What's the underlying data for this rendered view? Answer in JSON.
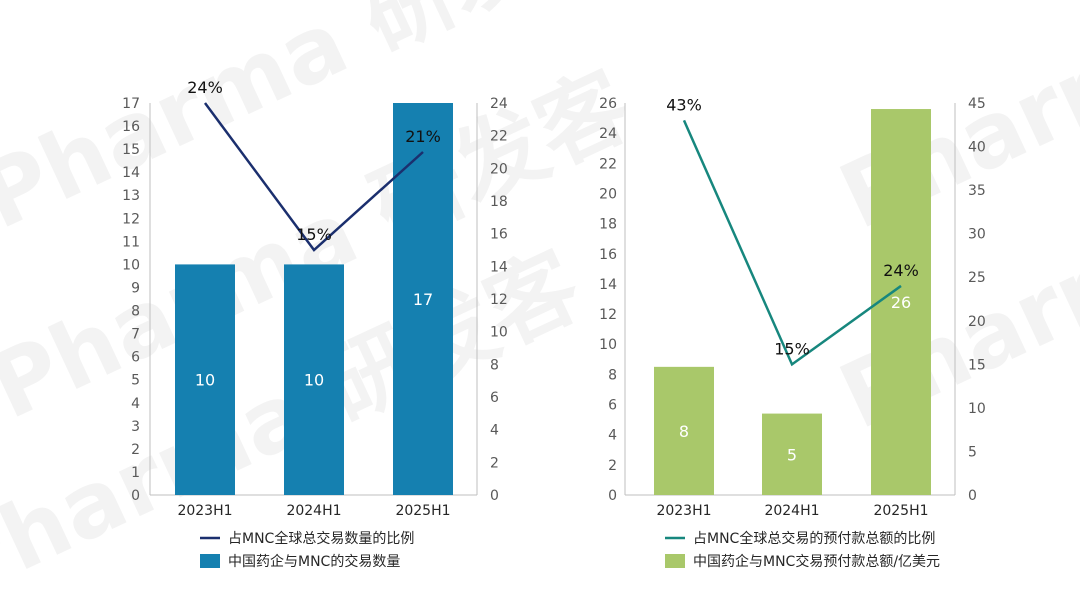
{
  "watermark": "Pharma 研发客",
  "chart_data": [
    {
      "type": "bar+line",
      "categories": [
        "2023H1",
        "2024H1",
        "2025H1"
      ],
      "bar_series": {
        "name": "中国药企与MNC的交易数量",
        "values": [
          10,
          10,
          17
        ],
        "labels": [
          "10",
          "10",
          "17"
        ],
        "color": "#1580b0"
      },
      "line_series": {
        "name": "占MNC全球总交易数量的比例",
        "values": [
          24,
          15,
          21
        ],
        "labels": [
          "24%",
          "15%",
          "21%"
        ],
        "color": "#1b2f6e"
      },
      "y_left": {
        "range": [
          0,
          17
        ],
        "step": 1
      },
      "y_right": {
        "range": [
          0,
          24
        ],
        "step": 2
      },
      "grid": false,
      "legend": "bottom"
    },
    {
      "type": "bar+line",
      "categories": [
        "2023H1",
        "2024H1",
        "2025H1"
      ],
      "bar_series": {
        "name": "中国药企与MNC交易预付款总额/亿美元",
        "values": [
          8.5,
          5.4,
          25.6
        ],
        "labels": [
          "8",
          "5",
          "26"
        ],
        "color": "#a9c86a"
      },
      "line_series": {
        "name": "占MNC全球总交易的预付款总额的比例",
        "values": [
          43,
          15,
          24
        ],
        "labels": [
          "43%",
          "15%",
          "24%"
        ],
        "color": "#17877e"
      },
      "y_left": {
        "range": [
          0,
          26
        ],
        "step": 2
      },
      "y_right": {
        "range": [
          0,
          45
        ],
        "step": 5
      },
      "grid": false,
      "legend": "bottom"
    }
  ]
}
